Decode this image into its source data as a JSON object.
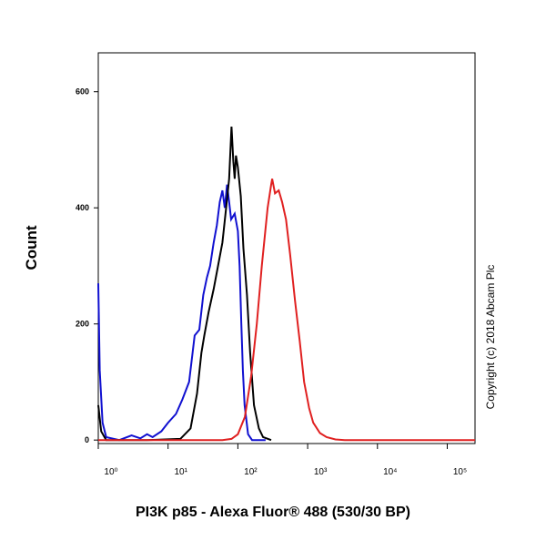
{
  "chart_data": {
    "type": "line",
    "xscale": "log",
    "x_label": "PI3K p85 - Alexa Fluor® 488 (530/30 BP)",
    "y_label": "Count",
    "annotation": "Copyright (c) 2018 Abcam Plc",
    "xlim": [
      1,
      250000
    ],
    "ylim": [
      -6,
      667
    ],
    "xticks": [
      {
        "value": 1,
        "label": "10⁰"
      },
      {
        "value": 10,
        "label": "10¹"
      },
      {
        "value": 100,
        "label": "10²"
      },
      {
        "value": 1000,
        "label": "10³"
      },
      {
        "value": 10000,
        "label": "10⁴"
      },
      {
        "value": 100000,
        "label": "10⁵"
      }
    ],
    "yticks": [
      0,
      200,
      400,
      600
    ],
    "series": [
      {
        "color": "#1010d0",
        "x": [
          1,
          1.05,
          1.15,
          1.3,
          2,
          3,
          4,
          5,
          6,
          8,
          10,
          13,
          16,
          20,
          24,
          28,
          32,
          36,
          40,
          45,
          50,
          55,
          60,
          65,
          70,
          75,
          80,
          90,
          100,
          106,
          112,
          118,
          125,
          140,
          160,
          250
        ],
        "values": [
          270,
          120,
          30,
          5,
          0,
          8,
          3,
          10,
          5,
          15,
          30,
          45,
          70,
          100,
          180,
          190,
          250,
          280,
          300,
          340,
          370,
          410,
          430,
          400,
          440,
          410,
          380,
          390,
          360,
          300,
          200,
          120,
          60,
          10,
          0,
          0
        ]
      },
      {
        "color": "#000000",
        "x": [
          1,
          1.1,
          1.3,
          5,
          15,
          21,
          26,
          30,
          33,
          38,
          45,
          52,
          60,
          68,
          75,
          81,
          86,
          90,
          94,
          100,
          110,
          120,
          135,
          150,
          170,
          200,
          230,
          300
        ],
        "values": [
          60,
          15,
          0,
          0,
          2,
          20,
          80,
          150,
          180,
          220,
          260,
          300,
          340,
          400,
          450,
          540,
          480,
          450,
          490,
          470,
          420,
          330,
          250,
          150,
          60,
          20,
          5,
          0
        ]
      },
      {
        "color": "#e02020",
        "x": [
          1,
          60,
          81,
          100,
          126,
          155,
          187,
          220,
          267,
          300,
          310,
          340,
          385,
          430,
          490,
          560,
          660,
          770,
          890,
          1050,
          1200,
          1500,
          1870,
          2500,
          3400,
          250000
        ],
        "values": [
          0,
          0,
          2,
          10,
          40,
          110,
          200,
          300,
          400,
          440,
          450,
          425,
          430,
          410,
          380,
          320,
          240,
          170,
          100,
          55,
          30,
          12,
          5,
          1,
          0,
          0
        ]
      }
    ]
  }
}
